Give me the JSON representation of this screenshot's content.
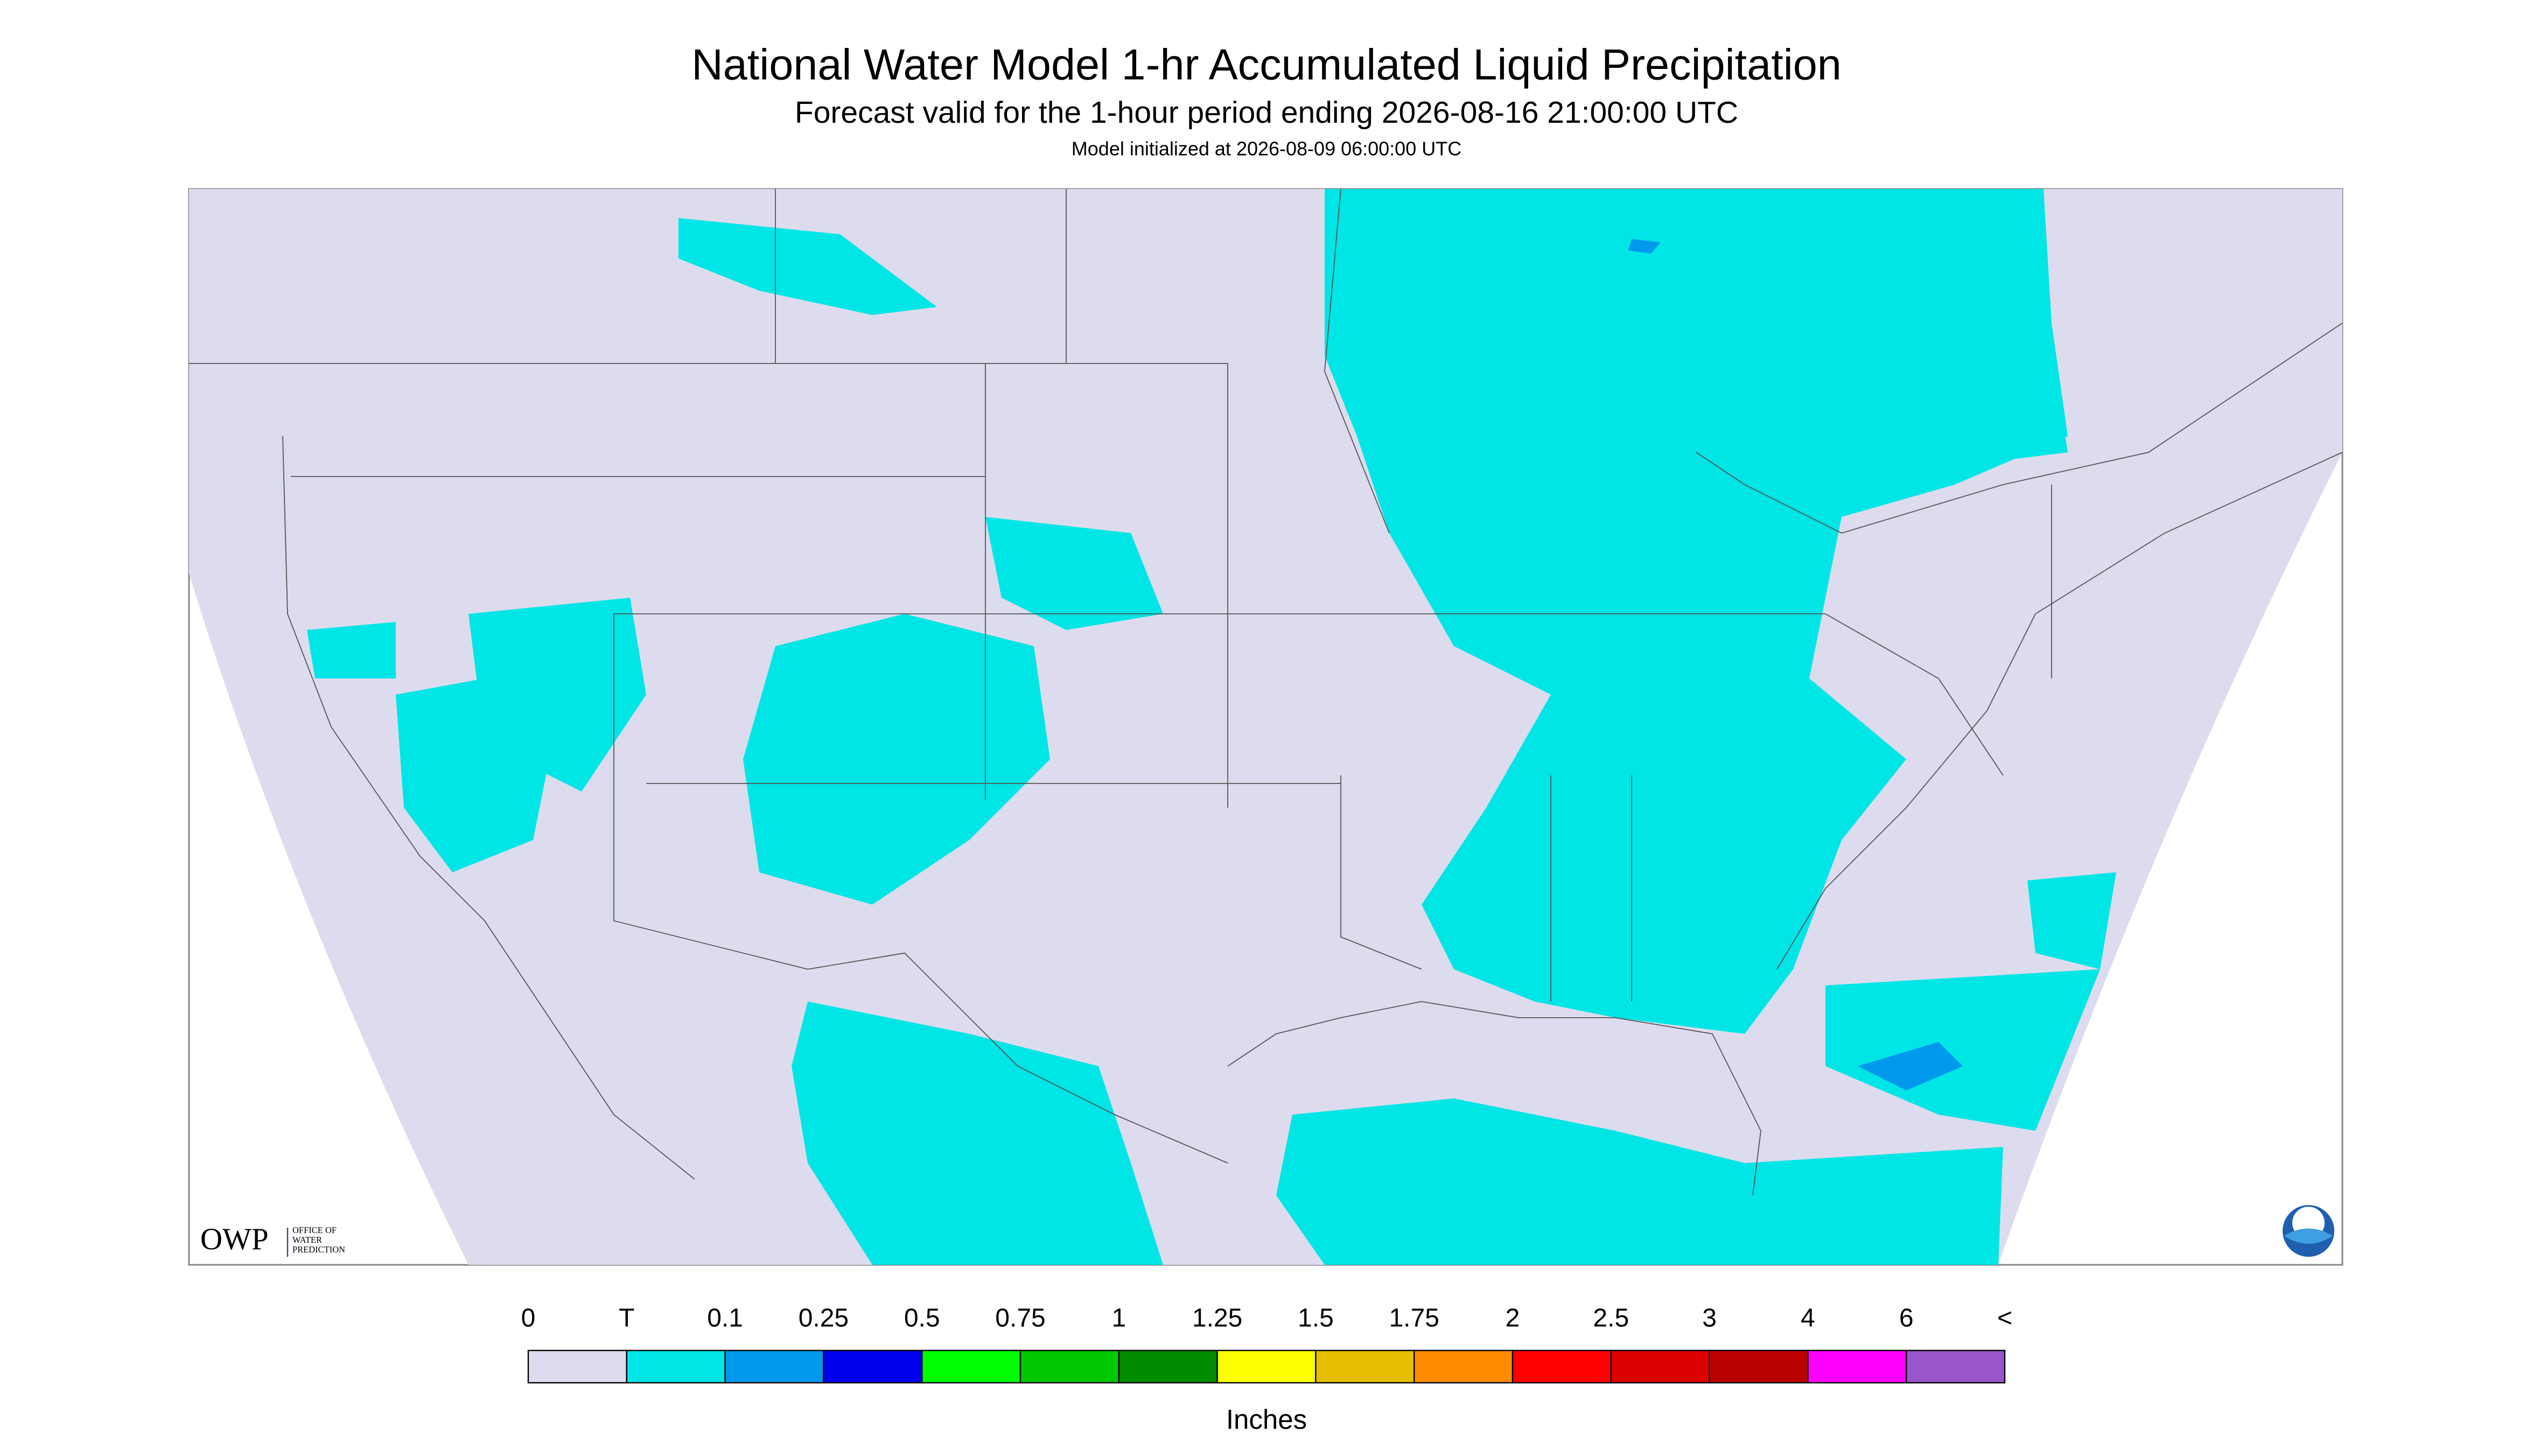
{
  "header": {
    "title": "National Water Model 1-hr Accumulated Liquid Precipitation",
    "subtitle": "Forecast valid for the 1-hour period ending 2026-08-16 21:00:00 UTC",
    "init": "Model initialized at 2026-08-09 06:00:00 UTC"
  },
  "legend": {
    "labels": [
      "0",
      "T",
      "0.1",
      "0.25",
      "0.5",
      "0.75",
      "1",
      "1.25",
      "1.5",
      "1.75",
      "2",
      "2.5",
      "3",
      "4",
      "6",
      "<"
    ],
    "colors": [
      "#dcdcee",
      "#00e5e5",
      "#0099ee",
      "#0000ee",
      "#00ff00",
      "#00c800",
      "#008c00",
      "#ffff00",
      "#e5bf00",
      "#ff8c00",
      "#ff0000",
      "#dd0000",
      "#bb0000",
      "#ff00ff",
      "#9955cc"
    ],
    "unit": "Inches"
  },
  "logo": {
    "text": "OWP",
    "subtext": [
      "OFFICE OF",
      "WATER",
      "PREDICTION"
    ]
  }
}
